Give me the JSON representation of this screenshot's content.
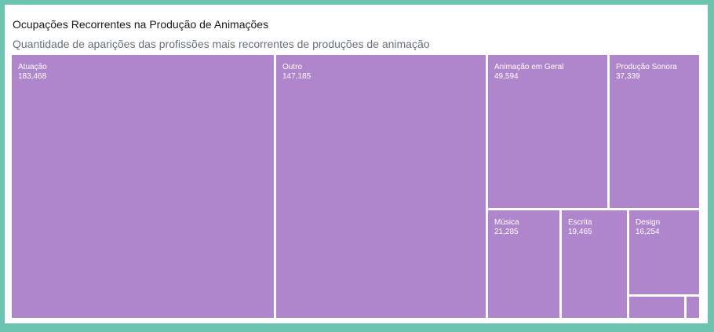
{
  "header": {
    "title": "Ocupações Recorrentes na Produção de Animações",
    "subtitle": "Quantidade de aparições das profissões mais recorrentes de produções de animação"
  },
  "colors": {
    "tile": "#af85cc",
    "frame": "#6cc3b0"
  },
  "chart_data": {
    "type": "treemap",
    "title": "Ocupações Recorrentes na Produção de Animações",
    "subtitle": "Quantidade de aparições das profissões mais recorrentes de produções de animação",
    "items": [
      {
        "label": "Atuação",
        "value": 183468,
        "display": "183,468"
      },
      {
        "label": "Outro",
        "value": 147185,
        "display": "147,185"
      },
      {
        "label": "Animação em Geral",
        "value": 49594,
        "display": "49,594"
      },
      {
        "label": "Produção Sonora",
        "value": 37339,
        "display": "37,339"
      },
      {
        "label": "Música",
        "value": 21285,
        "display": "21,285"
      },
      {
        "label": "Escrita",
        "value": 19465,
        "display": "19,465"
      },
      {
        "label": "Design",
        "value": 16254,
        "display": "16,254"
      },
      {
        "label": "",
        "value": 3500,
        "display": ""
      },
      {
        "label": "",
        "value": 900,
        "display": ""
      }
    ]
  }
}
